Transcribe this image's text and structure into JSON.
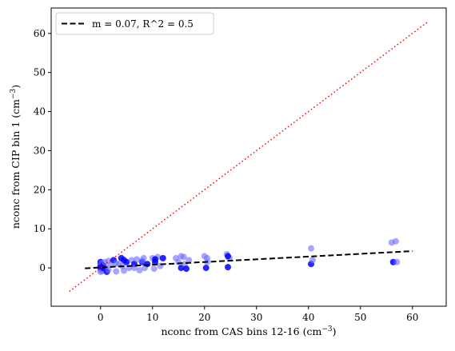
{
  "chart_data": {
    "type": "scatter",
    "xlabel": "nconc from CAS bins 12-16 (cm",
    "xlabel_sup": "−3",
    "xlabel_end": ")",
    "ylabel": "nconc from CIP bin 1 (cm",
    "ylabel_sup": "−3",
    "ylabel_end": ")",
    "xlim": [
      -9.5,
      66.5
    ],
    "ylim": [
      -9.8,
      66.5
    ],
    "xticks": [
      0,
      10,
      20,
      30,
      40,
      50,
      60
    ],
    "yticks": [
      0,
      10,
      20,
      30,
      40,
      50,
      60
    ],
    "grid": false,
    "legend_position": "top-left",
    "colors": {
      "points_translucent": "#6a6aff",
      "points_solid": "#0000ff",
      "points_teal": "#1a7a8a",
      "fit_line": "#000000",
      "one_to_one": "#ff0000"
    },
    "series": [
      {
        "name": "m = 0.07, R^2 = 0.5",
        "kind": "fit",
        "style": "dashed",
        "x": [
          -3,
          60
        ],
        "y": [
          -0.1,
          4.3
        ]
      },
      {
        "kind": "one_to_one",
        "style": "dotted",
        "x": [
          -6,
          63
        ],
        "y": [
          -6,
          63
        ]
      },
      {
        "kind": "points",
        "x": [
          0,
          0,
          0,
          0,
          0,
          0,
          0,
          0.2,
          0.3,
          0.5,
          0.8,
          1.0,
          1.2,
          1.5,
          2.0,
          2.5,
          3.0,
          3.5,
          4.0,
          4.2,
          4.5,
          5.0,
          5.5,
          6.0,
          6.5,
          7.0,
          7.5,
          8.0,
          8.3,
          8.5,
          9.0,
          10.0,
          10.3,
          10.5,
          11.0,
          11.5,
          12.0,
          14.5,
          15.0,
          15.5,
          16.0,
          16.2,
          16.5,
          17.0,
          20.0,
          20.3,
          20.5,
          24.3,
          24.5,
          24.8,
          40.5,
          40.5,
          40.8,
          56.0,
          56.3,
          56.8,
          57.0,
          0.5,
          1.5,
          3.0,
          4.5,
          6.5,
          8.0,
          10.5,
          15.5,
          20.5,
          24.5
        ],
        "y": [
          0,
          0.5,
          1.0,
          1.5,
          -0.5,
          -1.0,
          0.3,
          1.2,
          -0.8,
          0.6,
          1.5,
          0.2,
          -1.0,
          1.8,
          0.8,
          2.0,
          -0.9,
          1.0,
          2.5,
          0.5,
          -0.7,
          1.5,
          0.0,
          2.0,
          1.0,
          2.2,
          -0.6,
          1.5,
          2.5,
          0.0,
          1.0,
          2.5,
          -0.2,
          1.5,
          2.8,
          0.5,
          2.5,
          2.5,
          1.5,
          0.0,
          2.8,
          1.0,
          -0.2,
          2.0,
          3.0,
          0.0,
          2.5,
          3.5,
          0.2,
          2.5,
          5.0,
          1.0,
          2.0,
          6.5,
          1.5,
          6.8,
          1.5,
          0.0,
          -0.5,
          1.2,
          2.0,
          0.0,
          1.8,
          2.2,
          3.0,
          1.5,
          3.0
        ]
      }
    ]
  }
}
